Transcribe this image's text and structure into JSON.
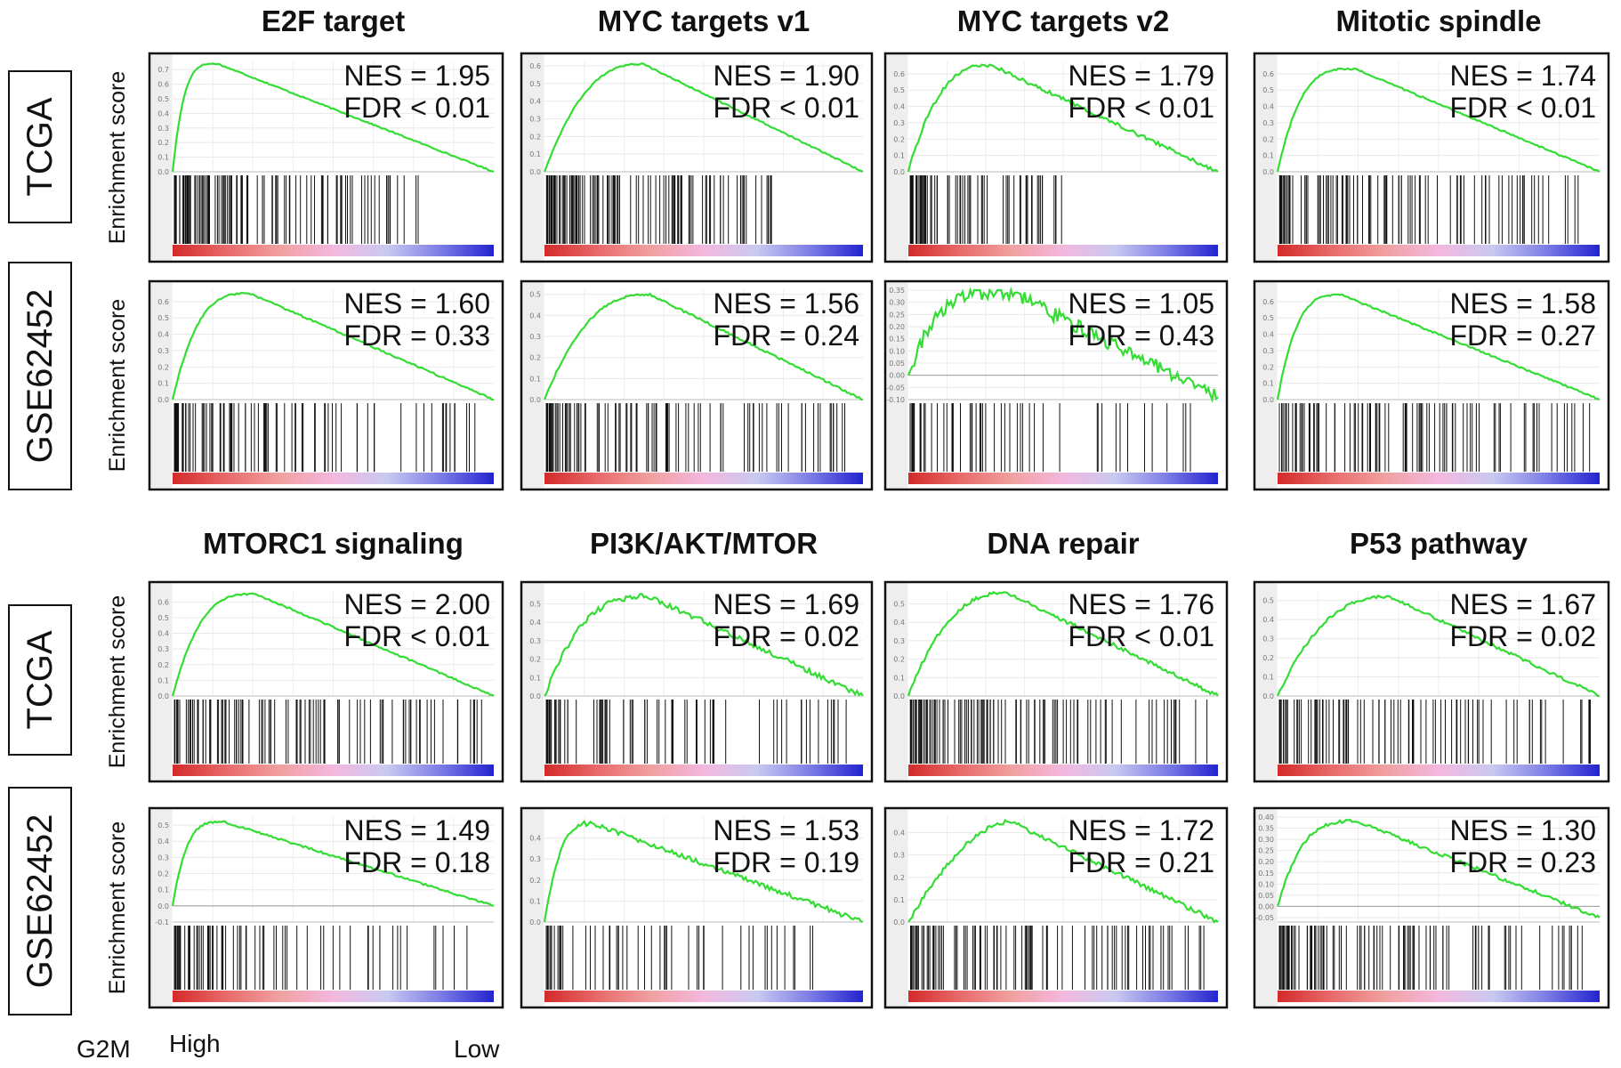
{
  "figure": {
    "y_axis_label": "Enrichment score",
    "footer": {
      "rank_label": "G2M",
      "high_label": "High",
      "low_label": "Low"
    },
    "cohorts": [
      "TCGA",
      "GSE62452",
      "TCGA",
      "GSE62452"
    ]
  },
  "colors": {
    "curve": "#33dd33",
    "hits": "#111111",
    "gradient": [
      "#d42a2a",
      "#e86a6a",
      "#f1a0a0",
      "#f3b8de",
      "#c9c9f1",
      "#7d7de6",
      "#2323d0"
    ]
  },
  "chart_data": [
    {
      "type": "line",
      "section": "top",
      "row": "TCGA",
      "col": 0,
      "title": "E2F target",
      "nes_text": "NES = 1.95",
      "fdr_text": "FDR < 0.01",
      "ylim": [
        0,
        0.75
      ],
      "yticks": [
        "0.0",
        "0.1",
        "0.2",
        "0.3",
        "0.4",
        "0.5",
        "0.6",
        "0.7"
      ],
      "peak": 0.74,
      "peak_pos": 0.14,
      "end": 0.0,
      "noise": 0.004,
      "early": 1.0,
      "hits_extent": 0.78,
      "hits_density": 0.9
    },
    {
      "type": "line",
      "section": "top",
      "row": "TCGA",
      "col": 1,
      "title": "MYC targets v1",
      "nes_text": "NES = 1.90",
      "fdr_text": "FDR < 0.01",
      "ylim": [
        0,
        0.62
      ],
      "yticks": [
        "0.0",
        "0.1",
        "0.2",
        "0.3",
        "0.4",
        "0.5",
        "0.6"
      ],
      "peak": 0.61,
      "peak_pos": 0.31,
      "end": 0.0,
      "noise": 0.004,
      "early": 0.5,
      "hits_extent": 0.72,
      "hits_density": 0.95
    },
    {
      "type": "line",
      "section": "top",
      "row": "TCGA",
      "col": 2,
      "title": "MYC targets v2",
      "nes_text": "NES = 1.79",
      "fdr_text": "FDR < 0.01",
      "ylim": [
        0,
        0.67
      ],
      "yticks": [
        "0.0",
        "0.1",
        "0.2",
        "0.3",
        "0.4",
        "0.5",
        "0.6"
      ],
      "peak": 0.65,
      "peak_pos": 0.27,
      "end": 0.0,
      "noise": 0.012,
      "early": 0.6,
      "hits_extent": 0.5,
      "hits_density": 0.6
    },
    {
      "type": "line",
      "section": "top",
      "row": "TCGA",
      "col": 3,
      "title": "Mitotic spindle",
      "nes_text": "NES = 1.74",
      "fdr_text": "FDR < 0.01",
      "ylim": [
        0,
        0.67
      ],
      "yticks": [
        "0.0",
        "0.1",
        "0.2",
        "0.3",
        "0.4",
        "0.5",
        "0.6"
      ],
      "peak": 0.63,
      "peak_pos": 0.24,
      "end": 0.0,
      "noise": 0.005,
      "early": 0.8,
      "hits_extent": 0.95,
      "hits_density": 0.8
    },
    {
      "type": "line",
      "section": "top",
      "row": "GSE62452",
      "col": 0,
      "title": "E2F target",
      "nes_text": "NES = 1.60",
      "fdr_text": "FDR = 0.33",
      "ylim": [
        0,
        0.67
      ],
      "yticks": [
        "0.0",
        "0.1",
        "0.2",
        "0.3",
        "0.4",
        "0.5",
        "0.6"
      ],
      "peak": 0.65,
      "peak_pos": 0.24,
      "end": 0.0,
      "noise": 0.005,
      "early": 0.7,
      "hits_extent": 0.98,
      "hits_density": 0.75
    },
    {
      "type": "line",
      "section": "top",
      "row": "GSE62452",
      "col": 1,
      "title": "MYC targets v1",
      "nes_text": "NES = 1.56",
      "fdr_text": "FDR = 0.24",
      "ylim": [
        0,
        0.52
      ],
      "yticks": [
        "0.0",
        "0.1",
        "0.2",
        "0.3",
        "0.4",
        "0.5"
      ],
      "peak": 0.5,
      "peak_pos": 0.33,
      "end": 0.0,
      "noise": 0.005,
      "early": 0.5,
      "hits_extent": 0.98,
      "hits_density": 0.85
    },
    {
      "type": "line",
      "section": "top",
      "row": "GSE62452",
      "col": 2,
      "title": "MYC targets v2",
      "nes_text": "NES = 1.05",
      "fdr_text": "FDR = 0.43",
      "ylim": [
        -0.1,
        0.35
      ],
      "yticks": [
        "-0.10",
        "-0.05",
        "0.00",
        "0.05",
        "0.10",
        "0.15",
        "0.20",
        "0.25",
        "0.30",
        "0.35"
      ],
      "peak": 0.34,
      "peak_pos": 0.33,
      "end": -0.09,
      "noise": 0.03,
      "early": 0.9,
      "hits_extent": 0.98,
      "hits_density": 0.45
    },
    {
      "type": "line",
      "section": "top",
      "row": "GSE62452",
      "col": 3,
      "title": "Mitotic spindle",
      "nes_text": "NES = 1.58",
      "fdr_text": "FDR = 0.27",
      "ylim": [
        0,
        0.67
      ],
      "yticks": [
        "0.0",
        "0.1",
        "0.2",
        "0.3",
        "0.4",
        "0.5",
        "0.6"
      ],
      "peak": 0.64,
      "peak_pos": 0.2,
      "end": 0.0,
      "noise": 0.005,
      "early": 0.8,
      "hits_extent": 0.98,
      "hits_density": 0.8
    },
    {
      "type": "line",
      "section": "bottom",
      "row": "TCGA",
      "col": 0,
      "title": "MTORC1 signaling",
      "nes_text": "NES = 2.00",
      "fdr_text": "FDR < 0.01",
      "ylim": [
        0,
        0.67
      ],
      "yticks": [
        "0.0",
        "0.1",
        "0.2",
        "0.3",
        "0.4",
        "0.5",
        "0.6"
      ],
      "peak": 0.65,
      "peak_pos": 0.26,
      "end": 0.0,
      "noise": 0.005,
      "early": 0.7,
      "hits_extent": 0.98,
      "hits_density": 0.85
    },
    {
      "type": "line",
      "section": "bottom",
      "row": "TCGA",
      "col": 1,
      "title": "PI3K/AKT/MTOR",
      "nes_text": "NES = 1.69",
      "fdr_text": "FDR = 0.02",
      "ylim": [
        0,
        0.57
      ],
      "yticks": [
        "0.0",
        "0.1",
        "0.2",
        "0.3",
        "0.4",
        "0.5"
      ],
      "peak": 0.54,
      "peak_pos": 0.33,
      "end": 0.0,
      "noise": 0.015,
      "early": 0.6,
      "hits_extent": 0.98,
      "hits_density": 0.6
    },
    {
      "type": "line",
      "section": "bottom",
      "row": "TCGA",
      "col": 2,
      "title": "DNA repair",
      "nes_text": "NES = 1.76",
      "fdr_text": "FDR < 0.01",
      "ylim": [
        0,
        0.57
      ],
      "yticks": [
        "0.0",
        "0.1",
        "0.2",
        "0.3",
        "0.4",
        "0.5"
      ],
      "peak": 0.56,
      "peak_pos": 0.32,
      "end": 0.0,
      "noise": 0.01,
      "early": 0.5,
      "hits_extent": 0.98,
      "hits_density": 0.9
    },
    {
      "type": "line",
      "section": "bottom",
      "row": "TCGA",
      "col": 3,
      "title": "P53 pathway",
      "nes_text": "NES = 1.67",
      "fdr_text": "FDR = 0.02",
      "ylim": [
        0,
        0.55
      ],
      "yticks": [
        "0.0",
        "0.1",
        "0.2",
        "0.3",
        "0.4",
        "0.5"
      ],
      "peak": 0.52,
      "peak_pos": 0.35,
      "end": 0.0,
      "noise": 0.008,
      "early": 0.5,
      "hits_extent": 0.98,
      "hits_density": 0.75
    },
    {
      "type": "line",
      "section": "bottom",
      "row": "GSE62452",
      "col": 0,
      "title": "MTORC1 signaling",
      "nes_text": "NES = 1.49",
      "fdr_text": "FDR = 0.18",
      "ylim": [
        -0.1,
        0.55
      ],
      "yticks": [
        "-0.1",
        "0.0",
        "0.1",
        "0.2",
        "0.3",
        "0.4",
        "0.5"
      ],
      "peak": 0.52,
      "peak_pos": 0.16,
      "end": 0.0,
      "noise": 0.006,
      "early": 0.9,
      "hits_extent": 0.98,
      "hits_density": 0.6
    },
    {
      "type": "line",
      "section": "bottom",
      "row": "GSE62452",
      "col": 1,
      "title": "PI3K/AKT/MTOR",
      "nes_text": "NES = 1.53",
      "fdr_text": "FDR = 0.19",
      "ylim": [
        0,
        0.5
      ],
      "yticks": [
        "0.0",
        "0.1",
        "0.2",
        "0.3",
        "0.4"
      ],
      "peak": 0.47,
      "peak_pos": 0.15,
      "end": 0.0,
      "noise": 0.012,
      "early": 0.7,
      "hits_extent": 0.98,
      "hits_density": 0.45
    },
    {
      "type": "line",
      "section": "bottom",
      "row": "GSE62452",
      "col": 2,
      "title": "DNA repair",
      "nes_text": "NES = 1.72",
      "fdr_text": "FDR = 0.21",
      "ylim": [
        0,
        0.47
      ],
      "yticks": [
        "0.0",
        "0.1",
        "0.2",
        "0.3",
        "0.4"
      ],
      "peak": 0.45,
      "peak_pos": 0.33,
      "end": 0.0,
      "noise": 0.01,
      "early": 0.25,
      "hits_extent": 0.98,
      "hits_density": 0.8
    },
    {
      "type": "line",
      "section": "bottom",
      "row": "GSE62452",
      "col": 3,
      "title": "P53 pathway",
      "nes_text": "NES = 1.30",
      "fdr_text": "FDR = 0.23",
      "ylim": [
        -0.07,
        0.4
      ],
      "yticks": [
        "-0.05",
        "0.00",
        "0.05",
        "0.10",
        "0.15",
        "0.20",
        "0.25",
        "0.30",
        "0.35",
        "0.40"
      ],
      "peak": 0.38,
      "peak_pos": 0.25,
      "end": -0.05,
      "noise": 0.008,
      "early": 0.8,
      "hits_extent": 0.98,
      "hits_density": 0.85
    }
  ]
}
